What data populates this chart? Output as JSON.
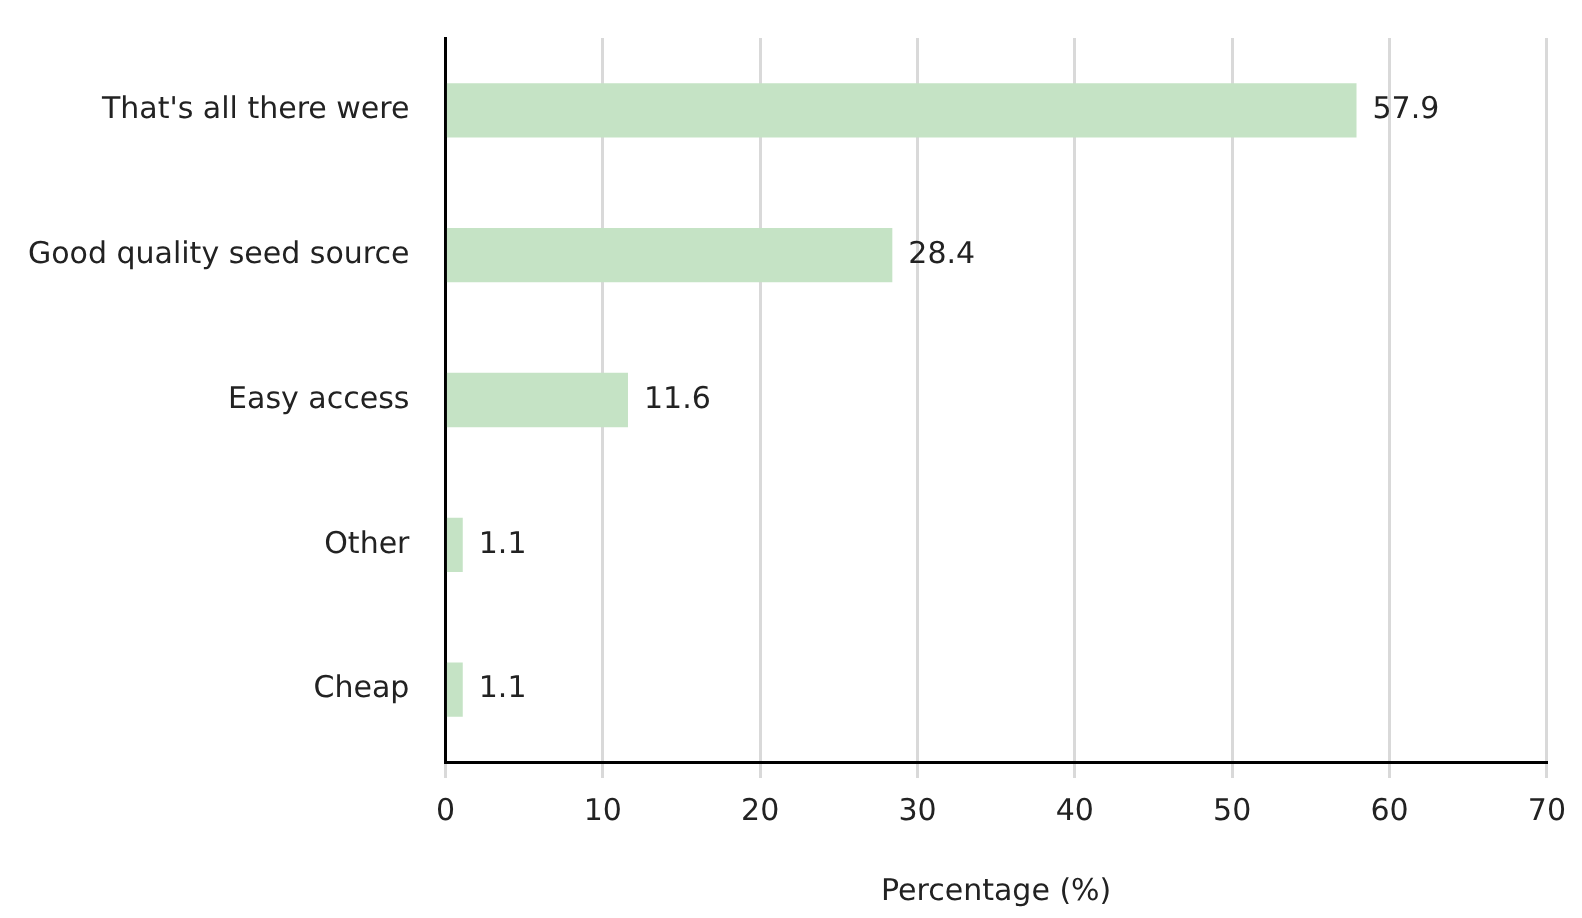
{
  "chart_data": {
    "type": "bar",
    "orientation": "horizontal",
    "xlabel": "Percentage (%)",
    "categories": [
      "That's all there were",
      "Good quality seed source",
      "Easy access",
      "Other",
      "Cheap"
    ],
    "values": [
      57.9,
      28.4,
      11.6,
      1.1,
      1.1
    ],
    "color": "#c5e3c5",
    "xlim": [
      0,
      70
    ],
    "xticks": [
      0,
      10,
      20,
      30,
      40,
      50,
      60,
      70
    ],
    "grid": "x",
    "data_labels": true
  }
}
